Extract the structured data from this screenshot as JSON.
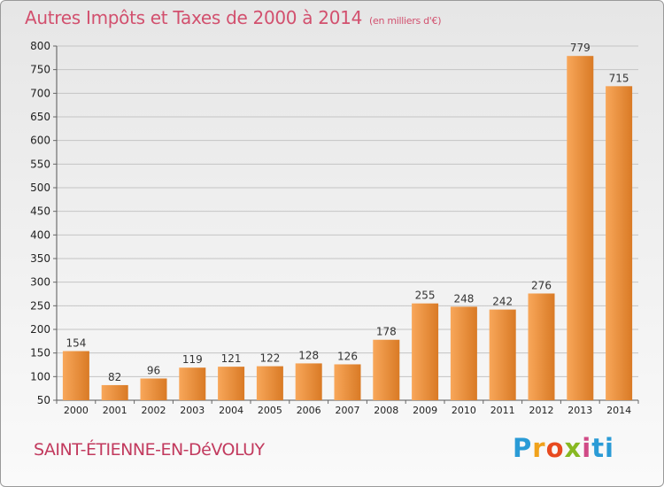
{
  "header": {
    "title": "Autres Impôts et Taxes de 2000 à 2014",
    "unit_note": "(en milliers d'€)"
  },
  "footer": {
    "commune": "SAINT-ÉTIENNE-EN-DéVOLUY",
    "brand_letters": [
      "P",
      "r",
      "o",
      "x",
      "i",
      "ti"
    ]
  },
  "colors": {
    "bar_light": "#f8a75a",
    "bar_dark": "#d97a25",
    "grid": "#c4c4c4",
    "title": "#d2506e"
  },
  "chart_data": {
    "type": "bar",
    "title": "Autres Impôts et Taxes de 2000 à 2014",
    "subtitle": "(en milliers d'€)",
    "categories": [
      "2000",
      "2001",
      "2002",
      "2003",
      "2004",
      "2005",
      "2006",
      "2007",
      "2008",
      "2009",
      "2010",
      "2011",
      "2012",
      "2013",
      "2014"
    ],
    "values": [
      154,
      82,
      96,
      119,
      121,
      122,
      128,
      126,
      178,
      255,
      248,
      242,
      276,
      779,
      715
    ],
    "ylim": [
      50,
      800
    ],
    "yticks": [
      50,
      100,
      150,
      200,
      250,
      300,
      350,
      400,
      450,
      500,
      550,
      600,
      650,
      700,
      750,
      800
    ],
    "grid": true,
    "xlabel": "",
    "ylabel": ""
  }
}
